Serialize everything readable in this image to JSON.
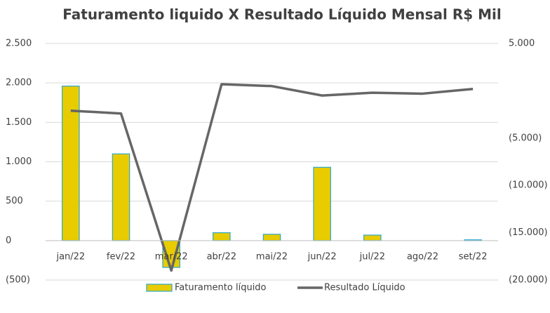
{
  "chart_data": {
    "type": "bar_line",
    "title": "Faturamento liquido X Resultado Líquido Mensal R$ Mil",
    "categories": [
      "jan/22",
      "fev/22",
      "mar/22",
      "abr/22",
      "mai/22",
      "jun/22",
      "jul/22",
      "ago/22",
      "set/22"
    ],
    "series": [
      {
        "name": "Faturamento líquido",
        "type": "bar",
        "color": "#e8cc00",
        "edge_color": "#2aa8cc",
        "values": [
          1960,
          1100,
          -340,
          100,
          80,
          930,
          70,
          0,
          10
        ]
      },
      {
        "name": "Resultado Líquido",
        "type": "line",
        "color": "#666666",
        "axis": "y2",
        "values": [
          -2100,
          -2400,
          -19000,
          700,
          500,
          -500,
          -200,
          -300,
          200
        ]
      }
    ],
    "ylim": [
      -500,
      2500
    ],
    "yticks": [
      {
        "value": -500,
        "label": "(500)"
      },
      0,
      500,
      {
        "value": 1000,
        "label": "1.000"
      },
      {
        "value": 1500,
        "label": "1.500"
      },
      {
        "value": 2000,
        "label": "2.000"
      },
      {
        "value": 2500,
        "label": "2.500"
      }
    ],
    "y2lim": [
      -20000,
      5000
    ],
    "y2ticks": [
      {
        "value": -20000,
        "label": "(20.000)"
      },
      {
        "value": -15000,
        "label": "(15.000)"
      },
      {
        "value": -10000,
        "label": "(10.000)"
      },
      {
        "value": -5000,
        "label": "(5.000)"
      },
      {
        "value": 5000,
        "label": "5.000"
      }
    ],
    "grid": true,
    "legend": "bottom"
  }
}
